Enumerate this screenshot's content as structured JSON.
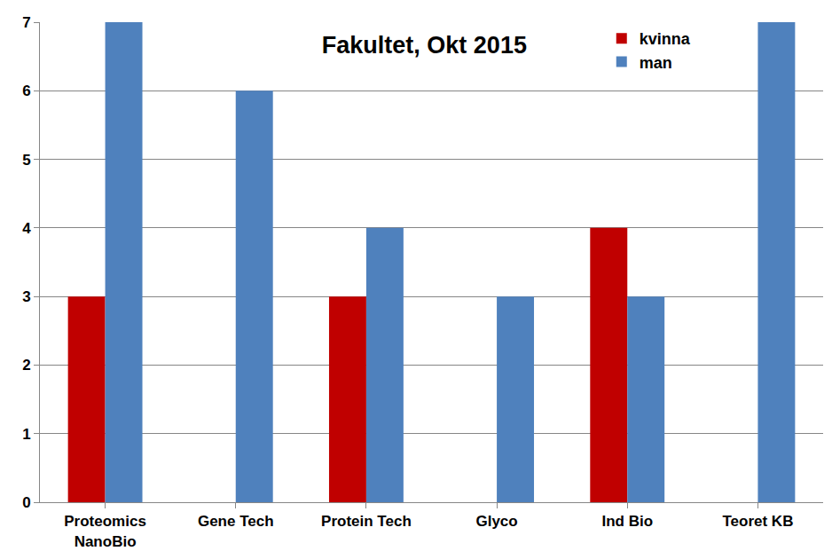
{
  "chart_data": {
    "type": "bar",
    "title": "Fakultet, Okt 2015",
    "categories": [
      "Proteomics\nNanoBio",
      "Gene Tech",
      "Protein Tech",
      "Glyco",
      "Ind Bio",
      "Teoret KB"
    ],
    "series": [
      {
        "name": "kvinna",
        "color": "#c00000",
        "values": [
          3,
          0,
          3,
          0,
          4,
          0
        ]
      },
      {
        "name": "man",
        "color": "#4f81bd",
        "values": [
          7,
          6,
          4,
          3,
          3,
          7
        ]
      }
    ],
    "ylim": [
      0,
      7
    ],
    "yticks": [
      0,
      1,
      2,
      3,
      4,
      5,
      6,
      7
    ],
    "grid": true,
    "legend": "top-right"
  }
}
